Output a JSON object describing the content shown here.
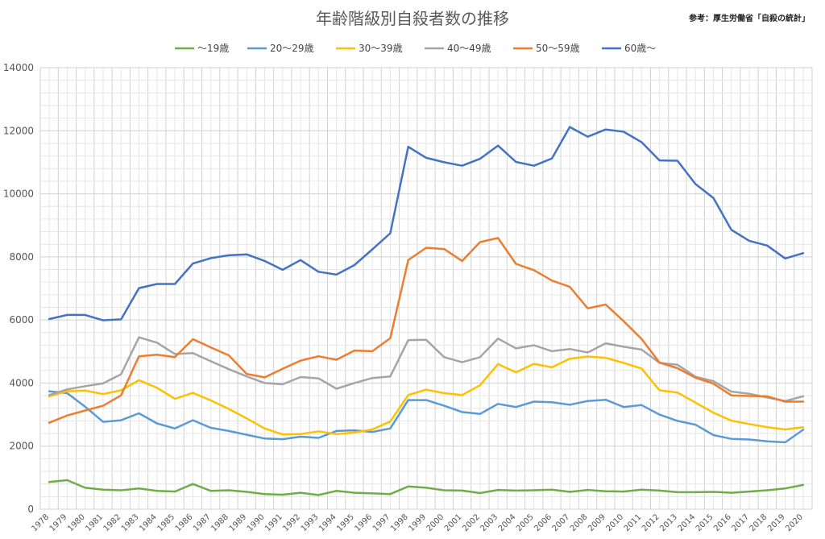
{
  "chart_data": {
    "type": "line",
    "title": "年齢階級別自殺者数の推移",
    "source": "参考：厚生労働省「自殺の統計」",
    "ylim": [
      0,
      14000
    ],
    "yticks": [
      0,
      2000,
      4000,
      6000,
      8000,
      10000,
      12000,
      14000
    ],
    "grid": true,
    "legend_position": "top",
    "categories": [
      "1978",
      "1979",
      "1980",
      "1981",
      "1982",
      "1983",
      "1984",
      "1985",
      "1986",
      "1987",
      "1988",
      "1989",
      "1990",
      "1991",
      "1992",
      "1993",
      "1994",
      "1995",
      "1996",
      "1997",
      "1998",
      "1999",
      "2000",
      "2001",
      "2002",
      "2003",
      "2004",
      "2005",
      "2006",
      "2007",
      "2008",
      "2009",
      "2010",
      "2011",
      "2012",
      "2013",
      "2014",
      "2015",
      "2016",
      "2017",
      "2018",
      "2019",
      "2020"
    ],
    "series": [
      {
        "name": "～19歳",
        "color": "#70ad47",
        "values": [
          860,
          920,
          680,
          620,
          600,
          660,
          580,
          560,
          800,
          580,
          600,
          550,
          480,
          460,
          520,
          450,
          580,
          520,
          500,
          480,
          720,
          680,
          600,
          590,
          510,
          610,
          590,
          600,
          620,
          550,
          610,
          570,
          560,
          620,
          590,
          540,
          540,
          550,
          520,
          560,
          600,
          660,
          770
        ]
      },
      {
        "name": "20～29歳",
        "color": "#5b9bd5",
        "values": [
          3740,
          3680,
          3250,
          2770,
          2820,
          3040,
          2720,
          2560,
          2820,
          2580,
          2480,
          2360,
          2240,
          2220,
          2300,
          2260,
          2480,
          2500,
          2450,
          2560,
          3460,
          3460,
          3280,
          3080,
          3020,
          3340,
          3240,
          3410,
          3390,
          3310,
          3430,
          3470,
          3240,
          3300,
          3000,
          2800,
          2680,
          2350,
          2230,
          2210,
          2150,
          2120,
          2520
        ]
      },
      {
        "name": "30～39歳",
        "color": "#ffc000",
        "values": [
          3580,
          3740,
          3760,
          3650,
          3770,
          4090,
          3850,
          3500,
          3690,
          3450,
          3180,
          2880,
          2560,
          2370,
          2380,
          2470,
          2380,
          2430,
          2530,
          2780,
          3620,
          3790,
          3680,
          3620,
          3930,
          4600,
          4340,
          4610,
          4500,
          4770,
          4840,
          4800,
          4640,
          4460,
          3770,
          3700,
          3380,
          3060,
          2810,
          2700,
          2600,
          2530,
          2600
        ]
      },
      {
        "name": "40～49歳",
        "color": "#a5a5a5",
        "values": [
          3620,
          3800,
          3900,
          3990,
          4280,
          5450,
          5280,
          4920,
          4950,
          4690,
          4440,
          4210,
          4000,
          3960,
          4190,
          4150,
          3820,
          4000,
          4160,
          4210,
          5360,
          5370,
          4820,
          4660,
          4820,
          5410,
          5100,
          5200,
          5010,
          5080,
          4970,
          5260,
          5150,
          5060,
          4640,
          4580,
          4200,
          4060,
          3730,
          3660,
          3540,
          3430,
          3580
        ]
      },
      {
        "name": "50～59歳",
        "color": "#ed7d31",
        "values": [
          2740,
          2970,
          3130,
          3280,
          3610,
          4850,
          4900,
          4820,
          5390,
          5130,
          4880,
          4290,
          4180,
          4450,
          4710,
          4850,
          4740,
          5030,
          5010,
          5420,
          7900,
          8290,
          8250,
          7870,
          8470,
          8600,
          7780,
          7580,
          7250,
          7050,
          6370,
          6490,
          5960,
          5400,
          4650,
          4470,
          4170,
          3980,
          3610,
          3590,
          3580,
          3410,
          3410
        ]
      },
      {
        "name": "60歳～",
        "color": "#4472c4",
        "values": [
          6030,
          6160,
          6160,
          5990,
          6020,
          7010,
          7140,
          7140,
          7790,
          7960,
          8050,
          8080,
          7870,
          7590,
          7900,
          7530,
          7440,
          7740,
          8240,
          8750,
          11490,
          11140,
          11000,
          10890,
          11110,
          11530,
          11010,
          10890,
          11120,
          12120,
          11810,
          12040,
          11970,
          11640,
          11060,
          11050,
          10310,
          9870,
          8860,
          8510,
          8360,
          7950,
          8120
        ]
      }
    ]
  }
}
